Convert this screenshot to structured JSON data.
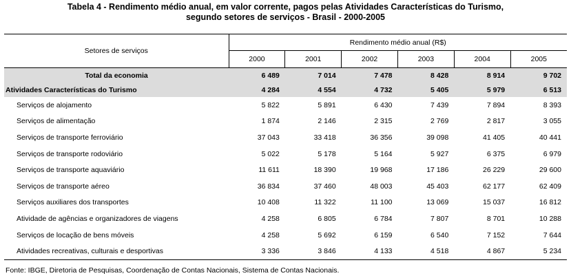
{
  "title": {
    "line1": "Tabela 4 - Rendimento médio anual, em valor corrente, pagos pelas Atividades Características do Turismo,",
    "line2": "segundo setores de serviços - Brasil - 2000-2005"
  },
  "header": {
    "sector_col": "Setores de serviços",
    "group": "Rendimento médio anual (R$)",
    "years": [
      "2000",
      "2001",
      "2002",
      "2003",
      "2004",
      "2005"
    ]
  },
  "total": {
    "label": "Total da economia",
    "values": [
      "6 489",
      "7 014",
      "7 478",
      "8 428",
      "8 914",
      "9 702"
    ]
  },
  "act": {
    "label": "Atividades Características do Turismo",
    "values": [
      "4 284",
      "4 554",
      "4 732",
      "5 405",
      "5 979",
      "6 513"
    ]
  },
  "rows": [
    {
      "label": "Serviços de alojamento",
      "values": [
        "5 822",
        "5 891",
        "6 430",
        "7 439",
        "7 894",
        "8 393"
      ]
    },
    {
      "label": "Serviços de alimentação",
      "values": [
        "1 874",
        "2 146",
        "2 315",
        "2 769",
        "2 817",
        "3 055"
      ]
    },
    {
      "label": "Serviços de transporte ferroviário",
      "values": [
        "37 043",
        "33 418",
        "36 356",
        "39 098",
        "41 405",
        "40 441"
      ]
    },
    {
      "label": "Serviços de transporte rodoviário",
      "values": [
        "5 022",
        "5 178",
        "5 164",
        "5 927",
        "6 375",
        "6 979"
      ]
    },
    {
      "label": "Serviços de transporte aquaviário",
      "values": [
        "11 611",
        "18 390",
        "19 968",
        "17 186",
        "26 229",
        "29 600"
      ]
    },
    {
      "label": "Serviços de transporte aéreo",
      "values": [
        "36 834",
        "37 460",
        "48 003",
        "45 403",
        "62 177",
        "62 409"
      ]
    },
    {
      "label": "Serviços auxiliares dos transportes",
      "values": [
        "10 408",
        "11 322",
        "11 100",
        "13 069",
        "15 037",
        "16 812"
      ]
    },
    {
      "label": "Atividade de agências e organizadores de viagens",
      "values": [
        "4 258",
        "6 805",
        "6 784",
        "7 807",
        "8 701",
        "10 288"
      ]
    },
    {
      "label": "Serviços de locação de bens móveis",
      "values": [
        "4 258",
        "5 692",
        "6 159",
        "6 540",
        "7 152",
        "7 644"
      ]
    },
    {
      "label": "Atividades recreativas, culturais e desportivas",
      "values": [
        "3 336",
        "3 846",
        "4 133",
        "4 518",
        "4 867",
        "5 234"
      ]
    }
  ],
  "source": "Fonte: IBGE, Diretoria de Pesquisas, Coordenação de Contas Nacionais, Sistema de Contas Nacionais."
}
